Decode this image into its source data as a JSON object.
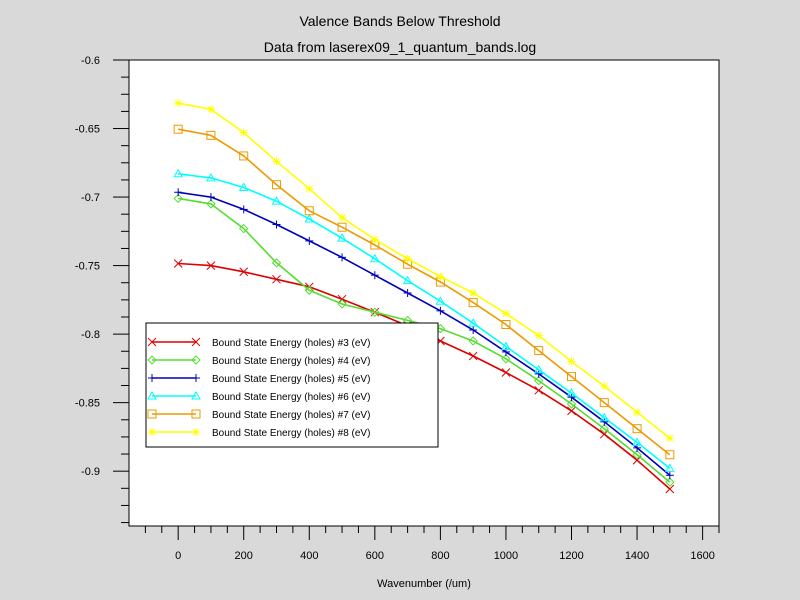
{
  "chart_data": {
    "type": "line",
    "title": "Valence Bands Below Threshold",
    "subtitle": "Data from laserex09_1_quantum_bands.log",
    "xlabel": "Wavenumber (/um)",
    "ylabel": "",
    "xlim": [
      -150,
      1650
    ],
    "ylim": [
      -0.94,
      -0.6
    ],
    "x_ticks": [
      0,
      200,
      400,
      600,
      800,
      1000,
      1200,
      1400,
      1600
    ],
    "x_tick_labels": [
      "0",
      "200",
      "400",
      "600",
      "800",
      "1000",
      "1200",
      "1400",
      "1600"
    ],
    "y_ticks": [
      -0.6,
      -0.65,
      -0.7,
      -0.75,
      -0.8,
      -0.85,
      -0.9
    ],
    "y_tick_labels": [
      "-0.6",
      "-0.65",
      "-0.7",
      "-0.75",
      "-0.8",
      "-0.85",
      "-0.9"
    ],
    "grid": false,
    "legend_position": "lower-left",
    "series": [
      {
        "name": "Bound State Energy (holes) #3 (eV)",
        "color": "#dd0000",
        "marker": "x",
        "x": [
          0,
          100,
          200,
          300,
          400,
          500,
          600,
          700,
          800,
          900,
          1000,
          1100,
          1200,
          1300,
          1400,
          1500
        ],
        "values": [
          -0.7485,
          -0.75,
          -0.7545,
          -0.76,
          -0.7655,
          -0.7745,
          -0.784,
          -0.794,
          -0.805,
          -0.816,
          -0.828,
          -0.841,
          -0.856,
          -0.873,
          -0.892,
          -0.913
        ]
      },
      {
        "name": "Bound State Energy (holes) #4 (eV)",
        "color": "#55dd33",
        "marker": "diamond",
        "x": [
          0,
          100,
          200,
          300,
          400,
          500,
          600,
          700,
          800,
          900,
          1000,
          1100,
          1200,
          1300,
          1400,
          1500
        ],
        "values": [
          -0.701,
          -0.705,
          -0.723,
          -0.748,
          -0.768,
          -0.778,
          -0.784,
          -0.79,
          -0.796,
          -0.805,
          -0.818,
          -0.834,
          -0.851,
          -0.869,
          -0.888,
          -0.908
        ]
      },
      {
        "name": "Bound State Energy (holes) #5 (eV)",
        "color": "#0000bb",
        "marker": "plus",
        "x": [
          0,
          100,
          200,
          300,
          400,
          500,
          600,
          700,
          800,
          900,
          1000,
          1100,
          1200,
          1300,
          1400,
          1500
        ],
        "values": [
          -0.6965,
          -0.7,
          -0.709,
          -0.72,
          -0.732,
          -0.744,
          -0.757,
          -0.77,
          -0.783,
          -0.797,
          -0.813,
          -0.829,
          -0.846,
          -0.864,
          -0.883,
          -0.903
        ]
      },
      {
        "name": "Bound State Energy (holes) #6 (eV)",
        "color": "#00ffff",
        "marker": "triangle",
        "x": [
          0,
          100,
          200,
          300,
          400,
          500,
          600,
          700,
          800,
          900,
          1000,
          1100,
          1200,
          1300,
          1400,
          1500
        ],
        "values": [
          -0.683,
          -0.686,
          -0.693,
          -0.703,
          -0.716,
          -0.73,
          -0.745,
          -0.761,
          -0.776,
          -0.792,
          -0.809,
          -0.826,
          -0.843,
          -0.861,
          -0.879,
          -0.898
        ]
      },
      {
        "name": "Bound State Energy (holes) #7 (eV)",
        "color": "#ee9900",
        "marker": "square",
        "x": [
          0,
          100,
          200,
          300,
          400,
          500,
          600,
          700,
          800,
          900,
          1000,
          1100,
          1200,
          1300,
          1400,
          1500
        ],
        "values": [
          -0.6505,
          -0.655,
          -0.67,
          -0.691,
          -0.71,
          -0.722,
          -0.735,
          -0.749,
          -0.762,
          -0.777,
          -0.793,
          -0.812,
          -0.831,
          -0.85,
          -0.869,
          -0.888
        ]
      },
      {
        "name": "Bound State Energy (holes) #8 (eV)",
        "color": "#ffff00",
        "marker": "star",
        "x": [
          0,
          100,
          200,
          300,
          400,
          500,
          600,
          700,
          800,
          900,
          1000,
          1100,
          1200,
          1300,
          1400,
          1500
        ],
        "values": [
          -0.6315,
          -0.636,
          -0.653,
          -0.674,
          -0.694,
          -0.715,
          -0.731,
          -0.745,
          -0.758,
          -0.77,
          -0.785,
          -0.801,
          -0.82,
          -0.838,
          -0.857,
          -0.876
        ]
      }
    ]
  }
}
